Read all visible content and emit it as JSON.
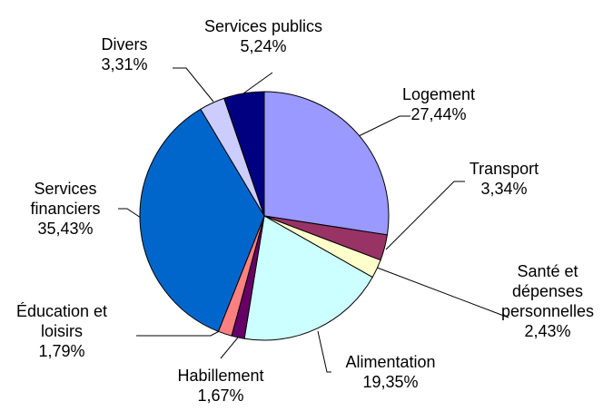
{
  "chart_data": {
    "type": "pie",
    "categories": [
      "Logement",
      "Transport",
      "Santé et dépenses personnelles",
      "Alimentation",
      "Habillement",
      "Éducation et loisirs",
      "Services financiers",
      "Divers",
      "Services publics"
    ],
    "values": [
      27.44,
      3.34,
      2.43,
      19.35,
      1.67,
      1.79,
      35.43,
      3.31,
      5.24
    ],
    "value_labels": [
      "27,44%",
      "3,34%",
      "2,43%",
      "19,35%",
      "1,67%",
      "1,79%",
      "35,43%",
      "3,31%",
      "5,24%"
    ],
    "colors": [
      "#9999ff",
      "#993366",
      "#ffffcc",
      "#ccffff",
      "#660066",
      "#ff8080",
      "#0066cc",
      "#ccccff",
      "#000080"
    ]
  }
}
